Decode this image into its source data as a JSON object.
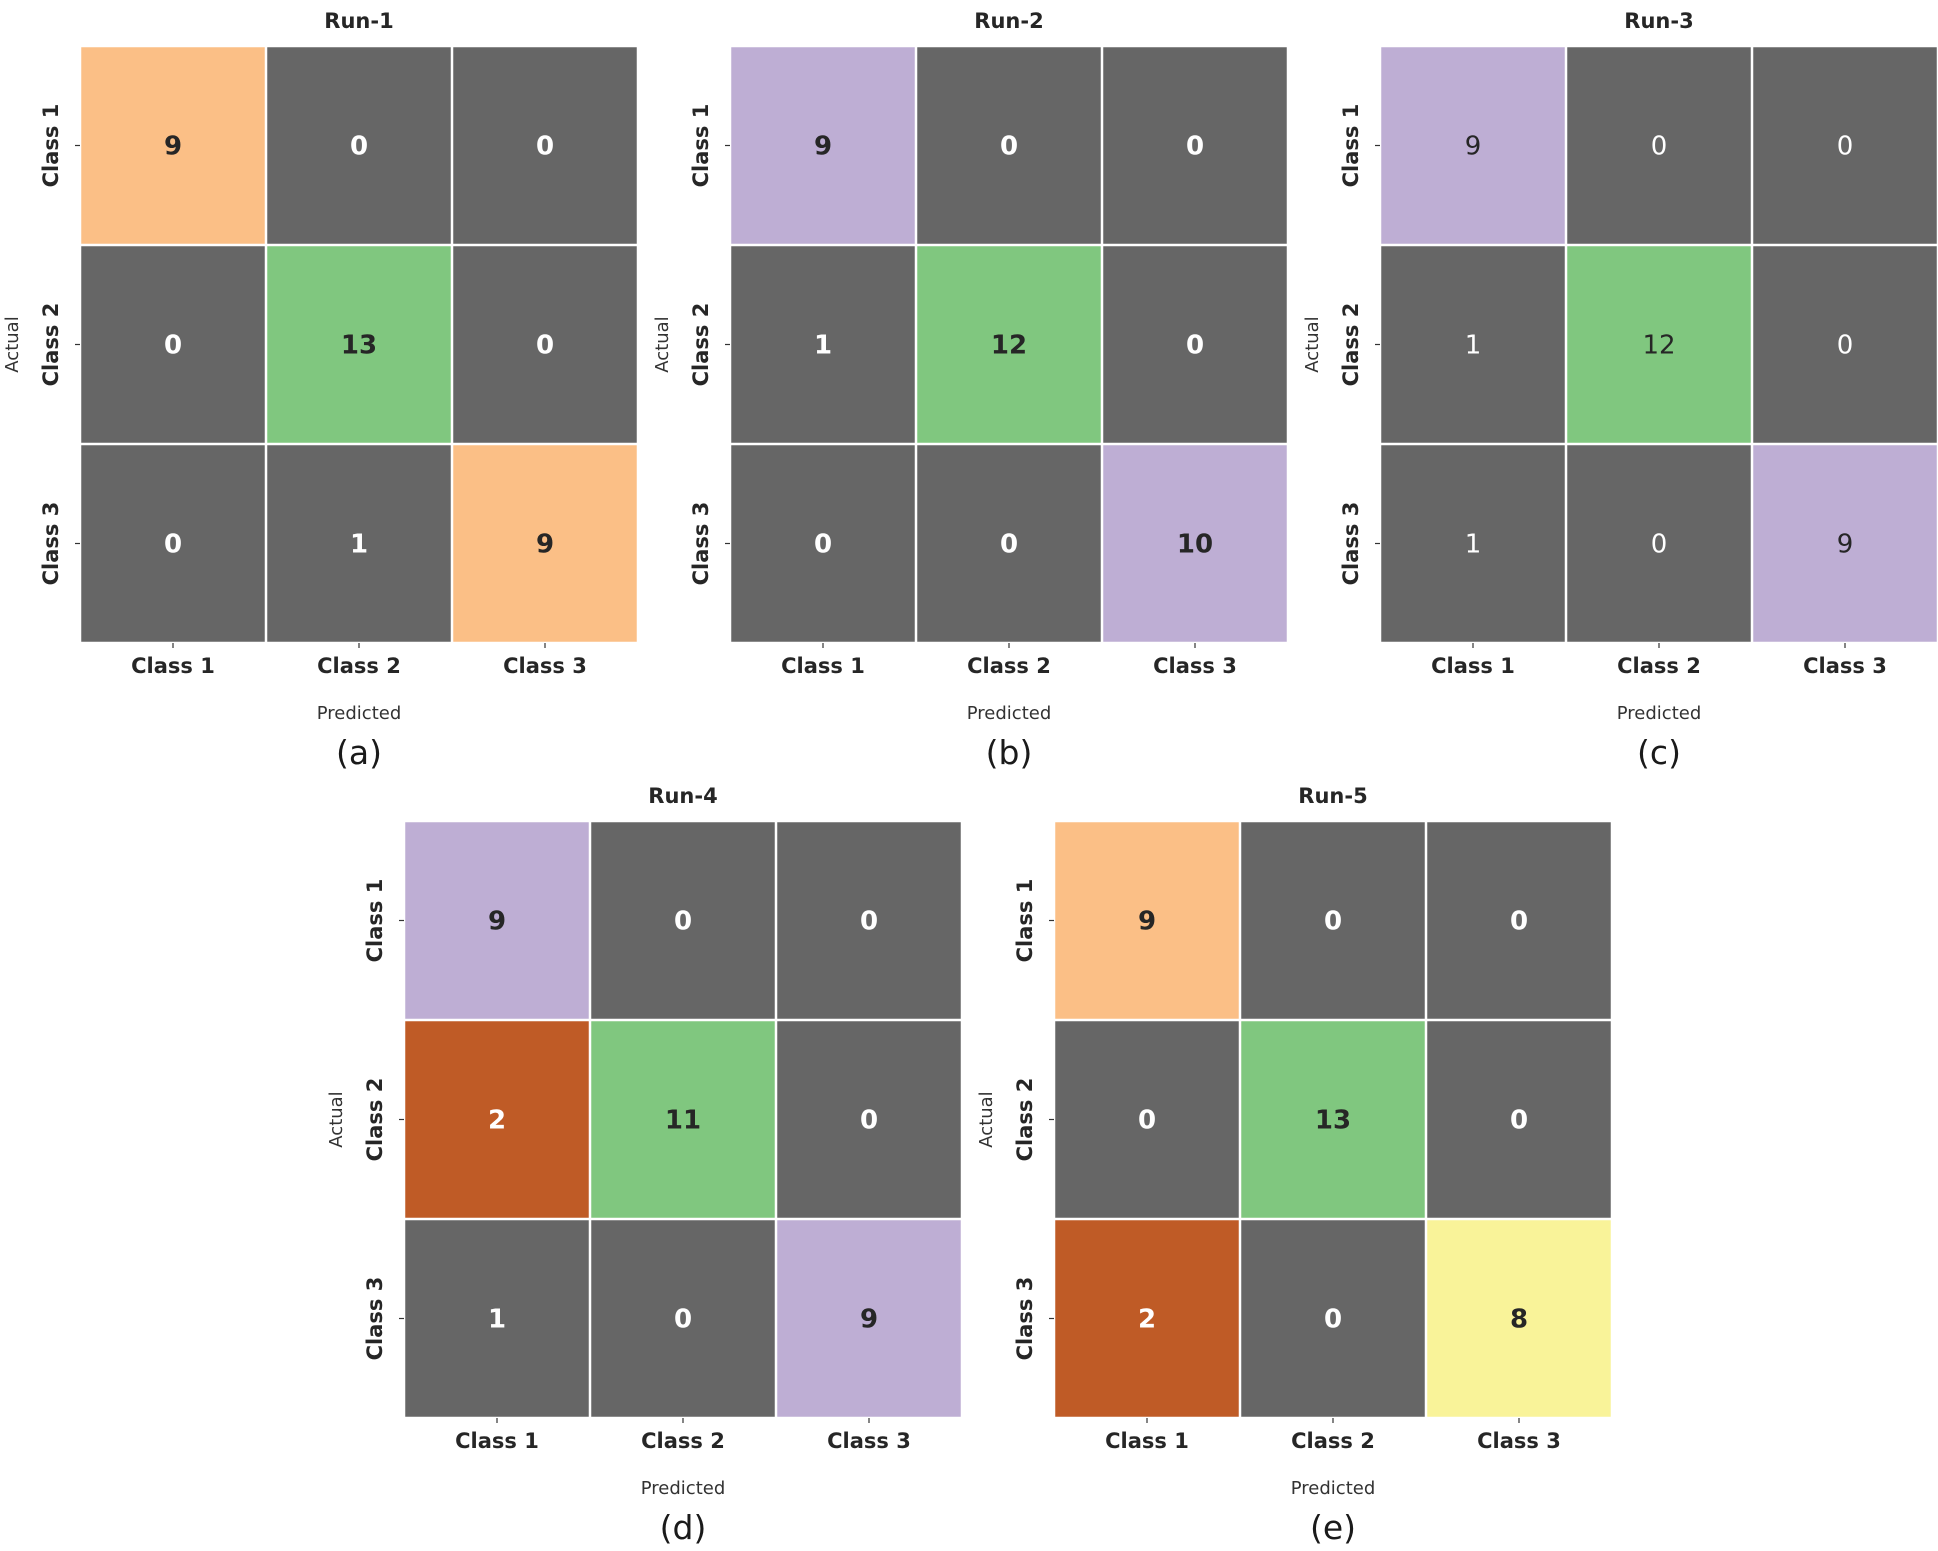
{
  "chart_data": [
    {
      "type": "heatmap",
      "title": "Run-1",
      "panel_label": "(a)",
      "xlabel": "Predicted",
      "ylabel": "Actual",
      "x_categories": [
        "Class 1",
        "Class 2",
        "Class 3"
      ],
      "y_categories": [
        "Class 1",
        "Class 2",
        "Class 3"
      ],
      "values": [
        [
          9,
          0,
          0
        ],
        [
          0,
          13,
          0
        ],
        [
          0,
          1,
          9
        ]
      ],
      "cell_colors": [
        [
          "#fbbf86",
          "#666666",
          "#666666"
        ],
        [
          "#666666",
          "#80c77f",
          "#666666"
        ],
        [
          "#666666",
          "#666666",
          "#fbbf86"
        ]
      ],
      "value_text_weight": "bold"
    },
    {
      "type": "heatmap",
      "title": "Run-2",
      "panel_label": "(b)",
      "xlabel": "Predicted",
      "ylabel": "Actual",
      "x_categories": [
        "Class 1",
        "Class 2",
        "Class 3"
      ],
      "y_categories": [
        "Class 1",
        "Class 2",
        "Class 3"
      ],
      "values": [
        [
          9,
          0,
          0
        ],
        [
          1,
          12,
          0
        ],
        [
          0,
          0,
          10
        ]
      ],
      "cell_colors": [
        [
          "#beaed4",
          "#666666",
          "#666666"
        ],
        [
          "#666666",
          "#80c77f",
          "#666666"
        ],
        [
          "#666666",
          "#666666",
          "#beaed4"
        ]
      ],
      "value_text_weight": "bold"
    },
    {
      "type": "heatmap",
      "title": "Run-3",
      "panel_label": "(c)",
      "xlabel": "Predicted",
      "ylabel": "Actual",
      "x_categories": [
        "Class 1",
        "Class 2",
        "Class 3"
      ],
      "y_categories": [
        "Class 1",
        "Class 2",
        "Class 3"
      ],
      "values": [
        [
          9,
          0,
          0
        ],
        [
          1,
          12,
          0
        ],
        [
          1,
          0,
          9
        ]
      ],
      "cell_colors": [
        [
          "#beaed4",
          "#666666",
          "#666666"
        ],
        [
          "#666666",
          "#80c77f",
          "#666666"
        ],
        [
          "#666666",
          "#666666",
          "#beaed4"
        ]
      ],
      "value_text_weight": "normal"
    },
    {
      "type": "heatmap",
      "title": "Run-4",
      "panel_label": "(d)",
      "xlabel": "Predicted",
      "ylabel": "Actual",
      "x_categories": [
        "Class 1",
        "Class 2",
        "Class 3"
      ],
      "y_categories": [
        "Class 1",
        "Class 2",
        "Class 3"
      ],
      "values": [
        [
          9,
          0,
          0
        ],
        [
          2,
          11,
          0
        ],
        [
          1,
          0,
          9
        ]
      ],
      "cell_colors": [
        [
          "#beaed4",
          "#666666",
          "#666666"
        ],
        [
          "#bf5b26",
          "#80c77f",
          "#666666"
        ],
        [
          "#666666",
          "#666666",
          "#beaed4"
        ]
      ],
      "value_text_weight": "bold"
    },
    {
      "type": "heatmap",
      "title": "Run-5",
      "panel_label": "(e)",
      "xlabel": "Predicted",
      "ylabel": "Actual",
      "x_categories": [
        "Class 1",
        "Class 2",
        "Class 3"
      ],
      "y_categories": [
        "Class 1",
        "Class 2",
        "Class 3"
      ],
      "values": [
        [
          9,
          0,
          0
        ],
        [
          0,
          13,
          0
        ],
        [
          2,
          0,
          8
        ]
      ],
      "cell_colors": [
        [
          "#fbbf86",
          "#666666",
          "#666666"
        ],
        [
          "#666666",
          "#80c77f",
          "#666666"
        ],
        [
          "#bf5b26",
          "#666666",
          "#f9f399"
        ]
      ],
      "value_text_weight": "bold"
    }
  ]
}
